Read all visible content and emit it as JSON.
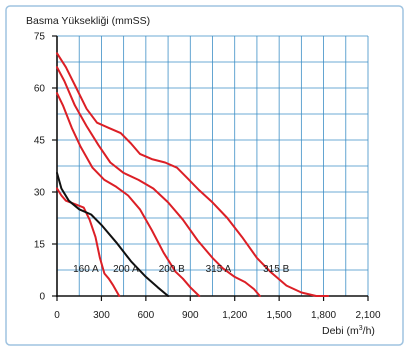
{
  "chart_data": {
    "type": "line",
    "ylabel": "Basma Yüksekliği (mmSS)",
    "xlabel": "Debi (m³/h)",
    "xlim": [
      0,
      2100
    ],
    "ylim": [
      0,
      75
    ],
    "x_ticks": [
      0,
      300,
      600,
      900,
      1200,
      1500,
      1800,
      2100
    ],
    "x_tick_labels": [
      "0",
      "300",
      "600",
      "900",
      "1,200",
      "1,500",
      "1,800",
      "2,100"
    ],
    "y_ticks": [
      0,
      15,
      30,
      45,
      60,
      75
    ],
    "y_tick_labels": [
      "0",
      "15",
      "30",
      "45",
      "60",
      "75"
    ],
    "x_minor_step": 150,
    "y_minor_step": 7.5,
    "grid": true,
    "colors": {
      "grid": "#3d8fc6",
      "red": "#dc1f26",
      "black": "#111111",
      "frame": "#9fc3e0"
    },
    "series": [
      {
        "name": "160 A",
        "color": "#dc1f26",
        "points": [
          [
            0,
            31
          ],
          [
            30,
            29
          ],
          [
            60,
            27.5
          ],
          [
            120,
            26.5
          ],
          [
            180,
            25.5
          ],
          [
            220,
            22
          ],
          [
            260,
            17
          ],
          [
            290,
            11
          ],
          [
            320,
            6.5
          ],
          [
            350,
            5
          ],
          [
            380,
            3
          ],
          [
            420,
            0
          ]
        ]
      },
      {
        "name": "200 A",
        "color": "#111111",
        "points": [
          [
            0,
            35.5
          ],
          [
            30,
            31
          ],
          [
            80,
            27.5
          ],
          [
            150,
            25
          ],
          [
            230,
            23.5
          ],
          [
            300,
            20.5
          ],
          [
            400,
            15.5
          ],
          [
            500,
            10
          ],
          [
            600,
            5.5
          ],
          [
            680,
            2.5
          ],
          [
            750,
            0
          ]
        ]
      },
      {
        "name": "200 B",
        "color": "#dc1f26",
        "points": [
          [
            0,
            58.5
          ],
          [
            40,
            55
          ],
          [
            100,
            48.5
          ],
          [
            160,
            43
          ],
          [
            240,
            37
          ],
          [
            320,
            33.5
          ],
          [
            400,
            31.5
          ],
          [
            480,
            29
          ],
          [
            560,
            25
          ],
          [
            640,
            19
          ],
          [
            720,
            12.5
          ],
          [
            800,
            7
          ],
          [
            850,
            5
          ],
          [
            900,
            2.5
          ],
          [
            960,
            0
          ]
        ]
      },
      {
        "name": "315 A",
        "color": "#dc1f26",
        "points": [
          [
            0,
            66
          ],
          [
            50,
            62
          ],
          [
            120,
            55
          ],
          [
            200,
            49
          ],
          [
            280,
            43.5
          ],
          [
            360,
            38.5
          ],
          [
            450,
            35.5
          ],
          [
            550,
            33.5
          ],
          [
            650,
            31
          ],
          [
            750,
            27
          ],
          [
            850,
            22
          ],
          [
            950,
            16
          ],
          [
            1050,
            11
          ],
          [
            1120,
            8
          ],
          [
            1200,
            5.5
          ],
          [
            1270,
            4
          ],
          [
            1330,
            2
          ],
          [
            1370,
            0
          ]
        ]
      },
      {
        "name": "315 B",
        "color": "#dc1f26",
        "points": [
          [
            0,
            70
          ],
          [
            60,
            66
          ],
          [
            130,
            60
          ],
          [
            200,
            54
          ],
          [
            270,
            50
          ],
          [
            350,
            48.5
          ],
          [
            430,
            47
          ],
          [
            500,
            44
          ],
          [
            560,
            41
          ],
          [
            640,
            39.5
          ],
          [
            730,
            38.5
          ],
          [
            810,
            37
          ],
          [
            880,
            34
          ],
          [
            960,
            30.5
          ],
          [
            1050,
            27
          ],
          [
            1150,
            22.5
          ],
          [
            1250,
            17
          ],
          [
            1350,
            11
          ],
          [
            1440,
            7
          ],
          [
            1550,
            3
          ],
          [
            1650,
            1
          ],
          [
            1750,
            0
          ],
          [
            1830,
            0
          ]
        ]
      }
    ],
    "annotations": [
      {
        "text": "160 A",
        "x": 195,
        "y": 8
      },
      {
        "text": "200 A",
        "x": 465,
        "y": 8
      },
      {
        "text": "200 B",
        "x": 775,
        "y": 8
      },
      {
        "text": "315 A",
        "x": 1090,
        "y": 8
      },
      {
        "text": "315 B",
        "x": 1480,
        "y": 8
      }
    ]
  }
}
